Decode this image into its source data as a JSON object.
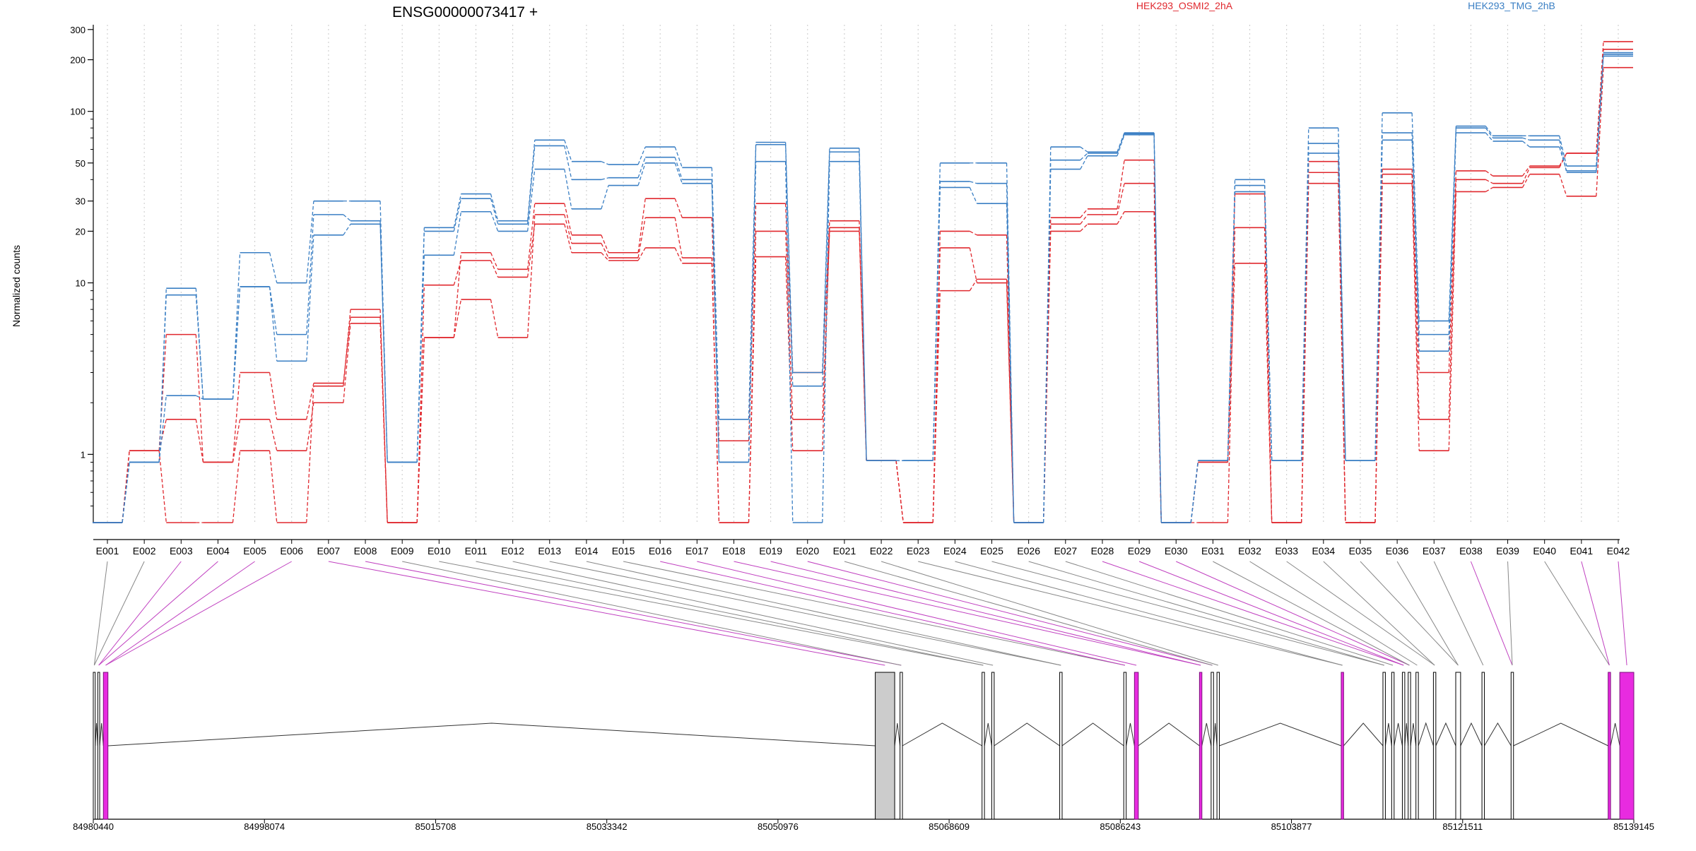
{
  "chart_data": {
    "type": "line",
    "title": "ENSG00000073417 +",
    "ylabel": "Normalized counts",
    "xlabel": "",
    "y_scale": "log",
    "ylim": [
      0.4,
      320
    ],
    "yticks": [
      1,
      10,
      20,
      30,
      50,
      100,
      200,
      300
    ],
    "grid": "vertical dotted lines at each exon",
    "legend_placement": "top-right",
    "categories": [
      "E001",
      "E002",
      "E003",
      "E004",
      "E005",
      "E006",
      "E007",
      "E008",
      "E009",
      "E010",
      "E011",
      "E012",
      "E013",
      "E014",
      "E015",
      "E016",
      "E017",
      "E018",
      "E019",
      "E020",
      "E021",
      "E022",
      "E023",
      "E024",
      "E025",
      "E026",
      "E027",
      "E028",
      "E029",
      "E030",
      "E031",
      "E032",
      "E033",
      "E034",
      "E035",
      "E036",
      "E037",
      "E038",
      "E039",
      "E040",
      "E041",
      "E042"
    ],
    "groups": [
      {
        "name": "HEK293_OSMI2_2hA",
        "color": "#e0282e"
      },
      {
        "name": "HEK293_TMG_2hB",
        "color": "#3a7fc4"
      }
    ],
    "series": [
      {
        "group": 0,
        "values": [
          0.4,
          1.05,
          5,
          0.9,
          3,
          1.6,
          2.6,
          6.3,
          0.4,
          4.8,
          15,
          12,
          29,
          19,
          15,
          31,
          24,
          1.2,
          29,
          3,
          23,
          0.92,
          0.4,
          20,
          19,
          0.4,
          24,
          27,
          52,
          0.4,
          0.9,
          33,
          0.4,
          51,
          0.4,
          46,
          3,
          45,
          42,
          48,
          57,
          255
        ]
      },
      {
        "group": 0,
        "values": [
          0.4,
          1.05,
          1.6,
          0.9,
          1.6,
          1.05,
          2,
          5.8,
          0.4,
          9.7,
          13.5,
          10.8,
          22,
          15,
          13.5,
          16,
          13,
          0.4,
          14.2,
          1.05,
          21,
          0.92,
          0.4,
          9,
          10.5,
          0.4,
          20,
          22,
          26,
          0.4,
          0.9,
          13,
          0.4,
          38,
          0.4,
          38,
          1.05,
          34,
          36,
          43,
          32,
          180
        ]
      },
      {
        "group": 0,
        "values": [
          0.4,
          1.05,
          0.4,
          0.4,
          1.05,
          0.4,
          2.5,
          7,
          0.4,
          4.8,
          8,
          4.8,
          25,
          17,
          14,
          24,
          14,
          0.4,
          20,
          1.6,
          20,
          0.92,
          0.4,
          16,
          10,
          0.4,
          22,
          25,
          38,
          0.4,
          0.4,
          21,
          0.4,
          44,
          0.4,
          43,
          1.6,
          40,
          38,
          47,
          57,
          230
        ]
      },
      {
        "group": 1,
        "values": [
          0.4,
          0.9,
          9.3,
          2.1,
          15,
          10,
          30,
          30,
          0.9,
          21,
          33,
          23,
          68,
          51,
          49,
          62,
          47,
          1.6,
          66,
          3,
          61,
          0.92,
          0.92,
          50,
          50,
          0.4,
          62,
          58,
          75,
          0.4,
          0.92,
          40,
          0.92,
          80,
          0.92,
          98,
          6,
          82,
          72,
          72,
          48,
          220
        ]
      },
      {
        "group": 1,
        "values": [
          0.4,
          0.9,
          8.5,
          2.1,
          9.5,
          3.5,
          19,
          22,
          0.9,
          14.5,
          26,
          20,
          46,
          27,
          37,
          50,
          38,
          0.9,
          51,
          0.4,
          51,
          0.92,
          0.92,
          36,
          29,
          0.4,
          46,
          55,
          73,
          0.4,
          0.92,
          37,
          0.92,
          57,
          0.92,
          68,
          4,
          75,
          67,
          62,
          45,
          210
        ]
      },
      {
        "group": 1,
        "values": [
          0.4,
          0.9,
          2.2,
          2.1,
          9.5,
          5,
          25,
          23,
          0.9,
          20,
          31,
          22,
          63,
          40,
          41,
          54,
          40,
          0.9,
          64,
          2.5,
          58,
          0.92,
          0.92,
          39,
          38,
          0.4,
          52,
          57,
          74,
          0.4,
          0.92,
          34,
          0.92,
          65,
          0.92,
          75,
          5,
          80,
          70,
          68,
          44,
          215
        ]
      }
    ],
    "gene_model": {
      "coordinate_ticks": [
        "84980440",
        "84998074",
        "85015708",
        "85033342",
        "85050976",
        "85068609",
        "85086243",
        "85103877",
        "85121511",
        "85139145"
      ],
      "exons": [
        {
          "start": 84980440,
          "end": 84980640,
          "type": "normal"
        },
        {
          "start": 84980900,
          "end": 84981100,
          "type": "normal"
        },
        {
          "start": 84981480,
          "end": 84981950,
          "type": "highlight"
        },
        {
          "start": 85061000,
          "end": 85063000,
          "type": "gray"
        },
        {
          "start": 85063550,
          "end": 85063800,
          "type": "normal"
        },
        {
          "start": 85072000,
          "end": 85072250,
          "type": "normal"
        },
        {
          "start": 85073000,
          "end": 85073250,
          "type": "normal"
        },
        {
          "start": 85080000,
          "end": 85080250,
          "type": "normal"
        },
        {
          "start": 85086600,
          "end": 85086850,
          "type": "normal"
        },
        {
          "start": 85087700,
          "end": 85088100,
          "type": "highlight"
        },
        {
          "start": 85094400,
          "end": 85094650,
          "type": "highlight"
        },
        {
          "start": 85095600,
          "end": 85095850,
          "type": "normal"
        },
        {
          "start": 85096200,
          "end": 85096450,
          "type": "normal"
        },
        {
          "start": 85109000,
          "end": 85109250,
          "type": "highlight"
        },
        {
          "start": 85113300,
          "end": 85113550,
          "type": "normal"
        },
        {
          "start": 85114200,
          "end": 85114450,
          "type": "normal"
        },
        {
          "start": 85115300,
          "end": 85115550,
          "type": "normal"
        },
        {
          "start": 85115900,
          "end": 85116150,
          "type": "normal"
        },
        {
          "start": 85116700,
          "end": 85116950,
          "type": "normal"
        },
        {
          "start": 85118500,
          "end": 85118750,
          "type": "normal"
        },
        {
          "start": 85120800,
          "end": 85121300,
          "type": "normal"
        },
        {
          "start": 85123500,
          "end": 85123750,
          "type": "normal"
        },
        {
          "start": 85126500,
          "end": 85126750,
          "type": "normal"
        },
        {
          "start": 85136500,
          "end": 85136750,
          "type": "highlight"
        },
        {
          "start": 85137700,
          "end": 85139145,
          "type": "highlight"
        }
      ]
    }
  }
}
